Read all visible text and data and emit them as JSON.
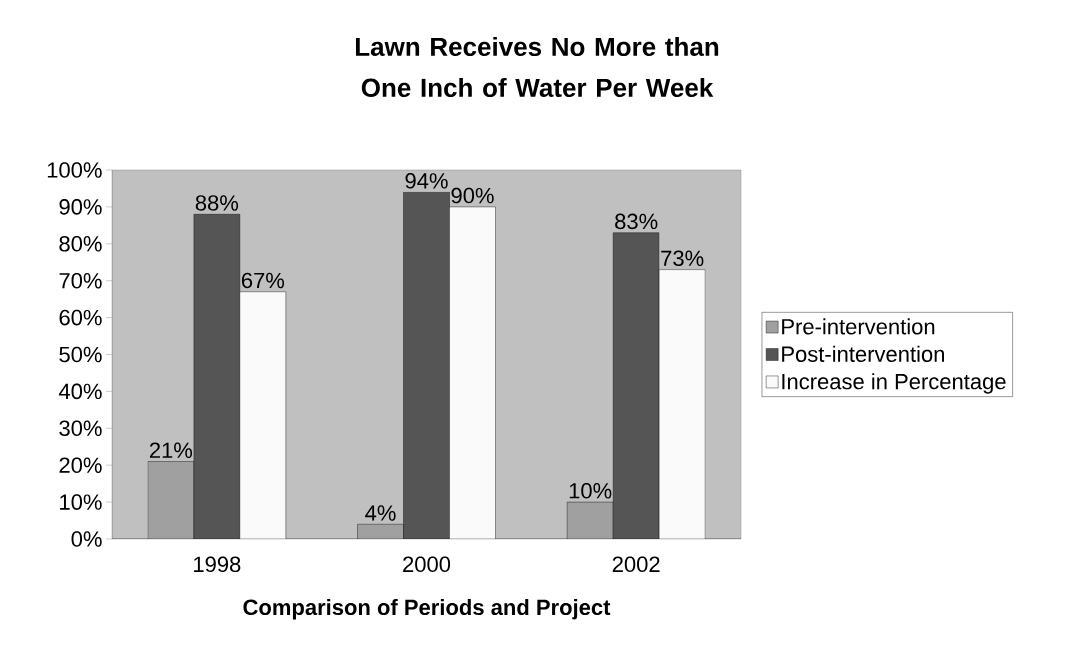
{
  "chart_data": {
    "type": "bar",
    "title": "Lawn Receives No More than One Inch of Water Per Week",
    "xlabel": "Comparison of Periods and Project",
    "categories": [
      "1998",
      "2000",
      "2002"
    ],
    "series": [
      {
        "name": "Pre-intervention",
        "color": "#a0a0a0",
        "values": [
          21,
          4,
          10
        ],
        "value_labels": [
          "21%",
          "4%",
          "10%"
        ]
      },
      {
        "name": "Post-intervention",
        "color": "#555555",
        "values": [
          88,
          94,
          83
        ],
        "value_labels": [
          "88%",
          "94%",
          "83%"
        ]
      },
      {
        "name": "Increase in Percentage",
        "color": "#fafafa",
        "values": [
          67,
          90,
          73
        ],
        "value_labels": [
          "67%",
          "90%",
          "73%"
        ]
      }
    ],
    "ylim": [
      0,
      100
    ],
    "yticks": [
      {
        "value": 0,
        "label": "0%"
      },
      {
        "value": 10,
        "label": "10%"
      },
      {
        "value": 20,
        "label": "20%"
      },
      {
        "value": 30,
        "label": "30%"
      },
      {
        "value": 40,
        "label": "40%"
      },
      {
        "value": 50,
        "label": "50%"
      },
      {
        "value": 60,
        "label": "60%"
      },
      {
        "value": 70,
        "label": "70%"
      },
      {
        "value": 80,
        "label": "80%"
      },
      {
        "value": 90,
        "label": "90%"
      },
      {
        "value": 100,
        "label": "100%"
      }
    ],
    "grid": false,
    "legend": "right"
  }
}
